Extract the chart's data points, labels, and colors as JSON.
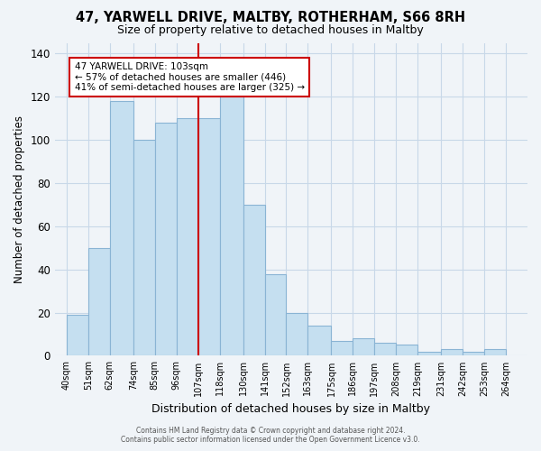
{
  "title": "47, YARWELL DRIVE, MALTBY, ROTHERHAM, S66 8RH",
  "subtitle": "Size of property relative to detached houses in Maltby",
  "xlabel": "Distribution of detached houses by size in Maltby",
  "ylabel": "Number of detached properties",
  "bar_left_edges": [
    40,
    51,
    62,
    74,
    85,
    96,
    107,
    118,
    130,
    141,
    152,
    163,
    175,
    186,
    197,
    208,
    219,
    231,
    242,
    253
  ],
  "bar_widths": [
    11,
    11,
    12,
    11,
    11,
    11,
    11,
    12,
    11,
    11,
    11,
    12,
    11,
    11,
    11,
    11,
    12,
    11,
    11,
    11
  ],
  "bar_heights": [
    19,
    50,
    118,
    100,
    108,
    110,
    110,
    133,
    70,
    38,
    20,
    14,
    7,
    8,
    6,
    5,
    2,
    3,
    2,
    3
  ],
  "bar_color": "#c5dff0",
  "bar_edgecolor": "#8ab4d4",
  "tick_labels": [
    "40sqm",
    "51sqm",
    "62sqm",
    "74sqm",
    "85sqm",
    "96sqm",
    "107sqm",
    "118sqm",
    "130sqm",
    "141sqm",
    "152sqm",
    "163sqm",
    "175sqm",
    "186sqm",
    "197sqm",
    "208sqm",
    "219sqm",
    "231sqm",
    "242sqm",
    "253sqm",
    "264sqm"
  ],
  "tick_positions": [
    40,
    51,
    62,
    74,
    85,
    96,
    107,
    118,
    130,
    141,
    152,
    163,
    175,
    186,
    197,
    208,
    219,
    231,
    242,
    253,
    264
  ],
  "vline_x": 107,
  "vline_color": "#cc0000",
  "ylim": [
    0,
    145
  ],
  "yticks": [
    0,
    20,
    40,
    60,
    80,
    100,
    120,
    140
  ],
  "annotation_line1": "47 YARWELL DRIVE: 103sqm",
  "annotation_line2": "← 57% of detached houses are smaller (446)",
  "annotation_line3": "41% of semi-detached houses are larger (325) →",
  "footer_line1": "Contains HM Land Registry data © Crown copyright and database right 2024.",
  "footer_line2": "Contains public sector information licensed under the Open Government Licence v3.0.",
  "bg_color": "#f0f4f8",
  "grid_color": "#c8d8e8",
  "xlim_left": 34,
  "xlim_right": 275
}
